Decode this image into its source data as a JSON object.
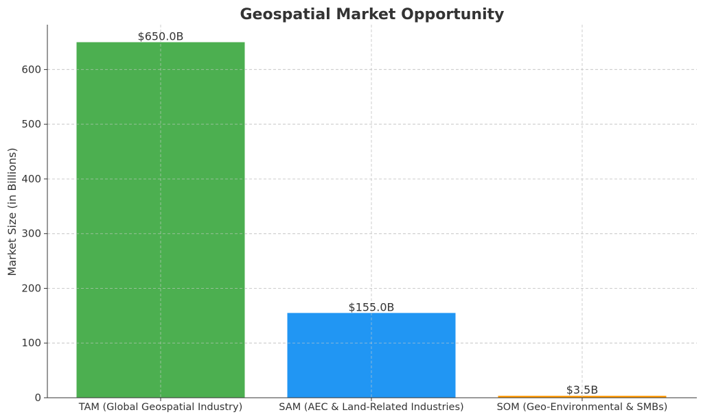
{
  "chart_data": {
    "type": "bar",
    "title": "Geospatial Market Opportunity",
    "xlabel": "",
    "ylabel": "Market Size (in Billions)",
    "categories": [
      "TAM (Global Geospatial Industry)",
      "SAM (AEC & Land-Related Industries)",
      "SOM (Geo-Environmental & SMBs)"
    ],
    "values": [
      650.0,
      155.0,
      3.5
    ],
    "data_labels": [
      "$650.0B",
      "$155.0B",
      "$3.5B"
    ],
    "colors": [
      "#4caf50",
      "#2196f3",
      "#ff9800"
    ],
    "ylim": [
      0,
      682
    ],
    "yticks": [
      0,
      100,
      200,
      300,
      400,
      500,
      600
    ],
    "grid": true,
    "legend": "none"
  }
}
